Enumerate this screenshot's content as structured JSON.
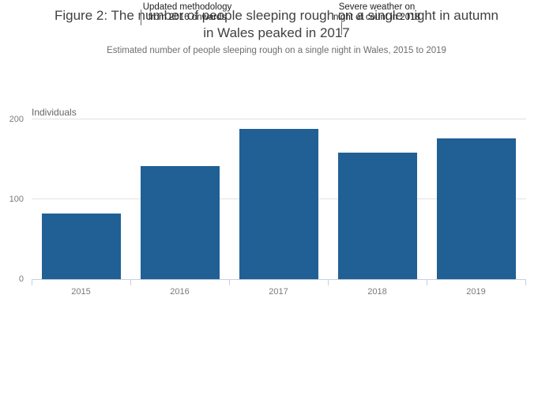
{
  "figure": {
    "title_line1": "Figure 2: The number of people sleeping rough on a single night in autumn",
    "title_line2": "in Wales peaked in 2017",
    "subtitle": "Estimated number of people sleeping rough on a single night in Wales, 2015 to 2019"
  },
  "annotations": [
    {
      "line1": "Updated methodology",
      "line2": "from 2016 onwards"
    },
    {
      "line1": "Severe weather on",
      "line2": "night of count in 2018"
    }
  ],
  "chart_data": {
    "type": "bar",
    "title": "Figure 2: The number of people sleeping rough on a single night in autumn in Wales peaked in 2017",
    "subtitle": "Estimated number of people sleeping rough on a single night in Wales, 2015 to 2019",
    "categories": [
      "2015",
      "2016",
      "2017",
      "2018",
      "2019"
    ],
    "values": [
      82,
      141,
      188,
      158,
      176
    ],
    "xlabel": "",
    "ylabel": "Individuals",
    "ylim": [
      0,
      200
    ],
    "yticks": [
      0,
      100,
      200
    ],
    "grid": true,
    "legend": "none",
    "bar_color": "#206095",
    "annotation_notes": [
      "Updated methodology from 2016 onwards",
      "Severe weather on night of count in 2018"
    ]
  },
  "colors": {
    "bar": "#206095",
    "title_text": "#414042",
    "subtitle_text": "#6e6e6e",
    "annotation_text": "#1f1f1f",
    "gridline": "#e1e1e1",
    "axis": "#c6cfe0",
    "tick_label": "#7a7a7a",
    "background": "#ffffff"
  }
}
